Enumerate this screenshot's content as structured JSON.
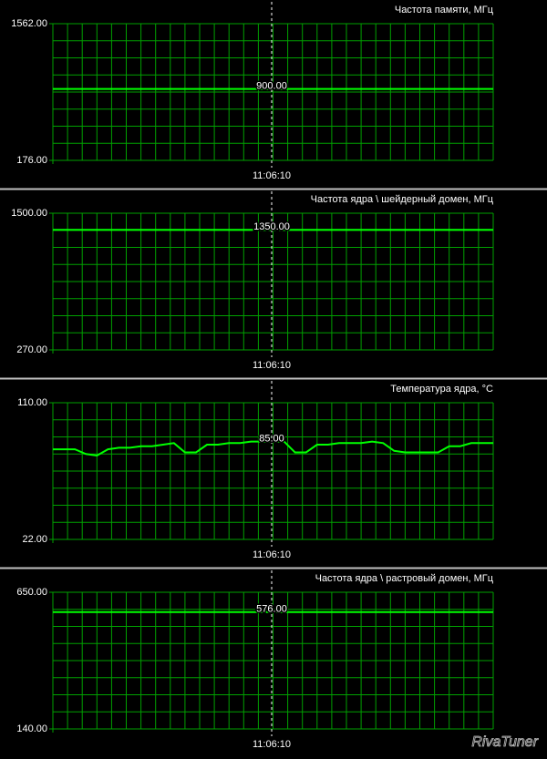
{
  "chart_data": [
    {
      "type": "line",
      "title": "Частота памяти, МГц",
      "color": "#00ff00",
      "ylim": [
        176,
        1562
      ],
      "yticks": [
        {
          "value": 176,
          "label": "176.00"
        },
        {
          "value": 1562,
          "label": "1562.00"
        }
      ],
      "values": [
        900,
        900,
        900,
        900,
        900,
        900,
        900,
        900,
        900,
        900,
        900,
        900,
        900,
        900,
        900,
        900,
        900,
        900,
        900,
        900,
        900,
        900,
        900,
        900,
        900,
        900,
        900,
        900,
        900,
        900,
        900,
        900,
        900,
        900,
        900,
        900,
        900,
        900,
        900,
        900,
        900
      ],
      "cursor_label": "900.00",
      "cursor_time": "11:06:10",
      "grid": true
    },
    {
      "type": "line",
      "title": "Частота ядра \\ шейдерный домен, МГц",
      "color": "#00ff00",
      "ylim": [
        270,
        1500
      ],
      "yticks": [
        {
          "value": 270,
          "label": "270.00"
        },
        {
          "value": 1500,
          "label": "1500.00"
        }
      ],
      "values": [
        1350,
        1350,
        1350,
        1350,
        1350,
        1350,
        1350,
        1350,
        1350,
        1350,
        1350,
        1350,
        1350,
        1350,
        1350,
        1350,
        1350,
        1350,
        1350,
        1350,
        1350,
        1350,
        1350,
        1350,
        1350,
        1350,
        1350,
        1350,
        1350,
        1350,
        1350,
        1350,
        1350,
        1350,
        1350,
        1350,
        1350,
        1350,
        1350,
        1350,
        1350
      ],
      "cursor_label": "1350.00",
      "cursor_time": "11:06:10",
      "grid": true
    },
    {
      "type": "line",
      "title": "Температура ядра, °C",
      "color": "#00ff00",
      "ylim": [
        22,
        110
      ],
      "yticks": [
        {
          "value": 22,
          "label": "22.00"
        },
        {
          "value": 110,
          "label": "110.00"
        }
      ],
      "values": [
        80,
        80,
        80,
        77,
        76,
        80,
        81,
        81,
        82,
        82,
        83,
        84,
        78,
        78,
        83,
        83,
        84,
        84,
        85,
        85,
        85,
        85,
        78,
        78,
        83,
        83,
        84,
        84,
        84,
        85,
        84,
        79,
        78,
        78,
        78,
        78,
        82,
        82,
        84,
        84,
        84
      ],
      "cursor_label": "85.00",
      "cursor_time": "11:06:10",
      "grid": true
    },
    {
      "type": "line",
      "title": "Частота ядра \\ растровый домен, МГц",
      "color": "#00ff00",
      "ylim": [
        140,
        650
      ],
      "yticks": [
        {
          "value": 140,
          "label": "140.00"
        },
        {
          "value": 650,
          "label": "650.00"
        }
      ],
      "values": [
        576,
        576,
        576,
        576,
        576,
        576,
        576,
        576,
        576,
        576,
        576,
        576,
        576,
        576,
        576,
        576,
        576,
        576,
        576,
        576,
        576,
        576,
        576,
        576,
        576,
        576,
        576,
        576,
        576,
        576,
        576,
        576,
        576,
        576,
        576,
        576,
        576,
        576,
        576,
        576,
        576
      ],
      "cursor_label": "576.00",
      "cursor_time": "11:06:10",
      "grid": true
    }
  ],
  "watermark": "RivaTuner"
}
